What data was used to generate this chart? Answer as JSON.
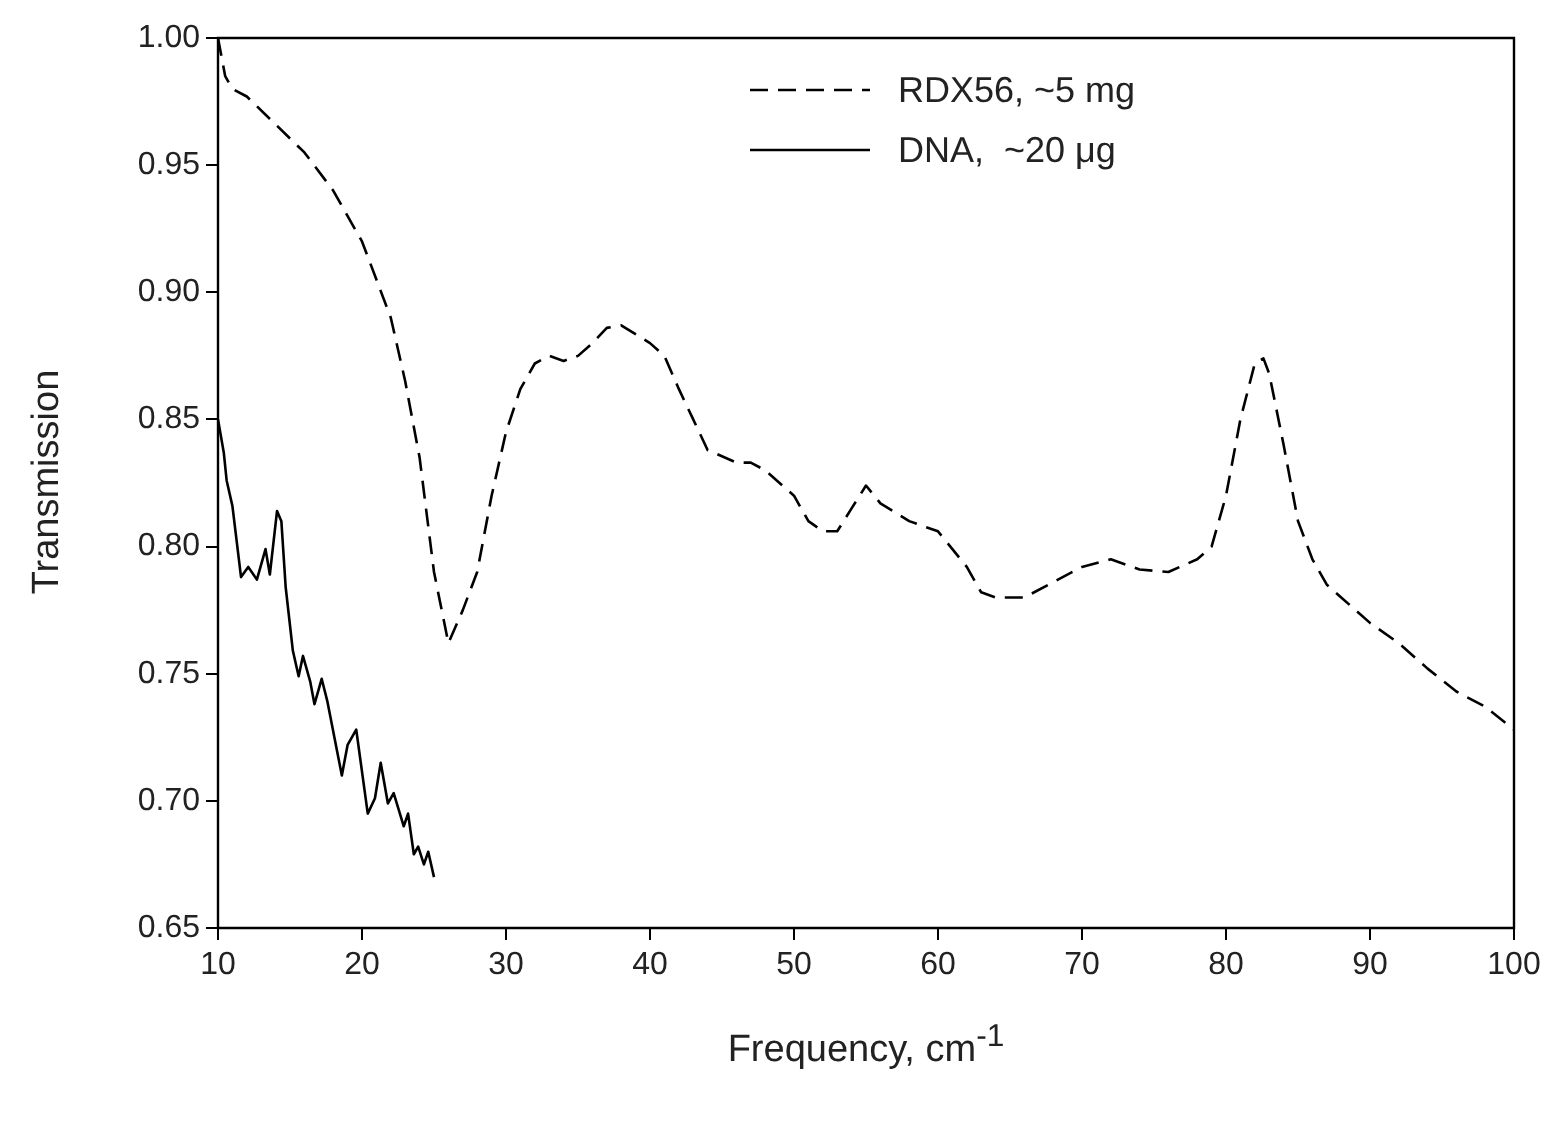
{
  "chart_data": {
    "type": "line",
    "xlabel": "Frequency, cm$^{-1}$",
    "ylabel": "Transmission",
    "xlim": [
      10,
      100
    ],
    "xticks": [
      10,
      20,
      30,
      40,
      50,
      60,
      70,
      80,
      90,
      100
    ],
    "ylim": [
      0.65,
      1.0
    ],
    "yticks": [
      0.65,
      {
        "value": 0.7,
        "label": "0.70"
      },
      0.75,
      {
        "value": 0.8,
        "label": "0.80"
      },
      0.85,
      {
        "value": 0.9,
        "label": "0.90"
      },
      0.95,
      {
        "value": 1.0,
        "label": "1.00"
      }
    ],
    "grid": false,
    "legend": "top right",
    "marker": "none",
    "series": [
      {
        "name": "RDX56, ~5 mg",
        "color": "#000000",
        "line_style": "dashed",
        "x": [
          10,
          10.5,
          11,
          12,
          14,
          16,
          18,
          20,
          21,
          22,
          23,
          24,
          25,
          26,
          27,
          28,
          29,
          30,
          31,
          32,
          33,
          34,
          35,
          36,
          37,
          38,
          40,
          41,
          42,
          43,
          44,
          46,
          47,
          48,
          50,
          51,
          52,
          53,
          54,
          55,
          56,
          58,
          60,
          62,
          63,
          64,
          66,
          68,
          70,
          72,
          74,
          76,
          78,
          79,
          80,
          81,
          82,
          82.6,
          83,
          84,
          85,
          86,
          87,
          88,
          90,
          92,
          94,
          96,
          98,
          100
        ],
        "values": [
          1.0,
          0.985,
          0.98,
          0.977,
          0.966,
          0.955,
          0.94,
          0.92,
          0.905,
          0.89,
          0.865,
          0.835,
          0.79,
          0.762,
          0.775,
          0.79,
          0.82,
          0.845,
          0.862,
          0.872,
          0.875,
          0.873,
          0.875,
          0.88,
          0.886,
          0.887,
          0.88,
          0.875,
          0.862,
          0.85,
          0.838,
          0.833,
          0.833,
          0.83,
          0.82,
          0.81,
          0.806,
          0.806,
          0.815,
          0.824,
          0.817,
          0.81,
          0.806,
          0.792,
          0.782,
          0.78,
          0.78,
          0.786,
          0.792,
          0.795,
          0.791,
          0.79,
          0.795,
          0.8,
          0.82,
          0.85,
          0.872,
          0.874,
          0.868,
          0.84,
          0.81,
          0.795,
          0.785,
          0.78,
          0.77,
          0.762,
          0.752,
          0.743,
          0.737,
          0.728
        ]
      },
      {
        "name": "DNA,  ~20 μg",
        "color": "#000000",
        "line_style": "solid",
        "x": [
          10,
          10.4,
          10.6,
          11.0,
          11.6,
          12.1,
          12.7,
          13.3,
          13.6,
          14.1,
          14.4,
          14.7,
          15.2,
          15.6,
          15.9,
          16.4,
          16.7,
          17.2,
          17.6,
          18.6,
          19.0,
          19.6,
          20.4,
          20.9,
          21.3,
          21.8,
          22.2,
          22.9,
          23.2,
          23.6,
          23.9,
          24.3,
          24.6,
          25.0
        ],
        "values": [
          0.85,
          0.837,
          0.826,
          0.816,
          0.788,
          0.792,
          0.787,
          0.799,
          0.789,
          0.814,
          0.81,
          0.784,
          0.759,
          0.749,
          0.757,
          0.747,
          0.738,
          0.748,
          0.739,
          0.71,
          0.722,
          0.728,
          0.695,
          0.701,
          0.715,
          0.699,
          0.703,
          0.69,
          0.695,
          0.679,
          0.682,
          0.675,
          0.68,
          0.67
        ]
      }
    ]
  }
}
